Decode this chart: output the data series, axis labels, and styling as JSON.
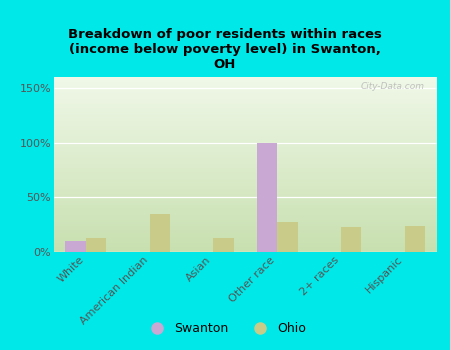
{
  "title": "Breakdown of poor residents within races\n(income below poverty level) in Swanton,\nOH",
  "categories": [
    "White",
    "American Indian",
    "Asian",
    "Other race",
    "2+ races",
    "Hispanic"
  ],
  "swanton_values": [
    10,
    0,
    0,
    100,
    0,
    0
  ],
  "ohio_values": [
    13,
    35,
    13,
    27,
    23,
    24
  ],
  "swanton_color": "#c9a8d4",
  "ohio_color": "#c8cc88",
  "background_color": "#00e8e8",
  "plot_bg_color": "#e4f0d4",
  "watermark": "City-Data.com",
  "ylim": [
    0,
    160
  ],
  "yticks": [
    0,
    50,
    100,
    150
  ],
  "ytick_labels": [
    "0%",
    "50%",
    "100%",
    "150%"
  ],
  "legend_swanton": "Swanton",
  "legend_ohio": "Ohio",
  "bar_width": 0.32
}
